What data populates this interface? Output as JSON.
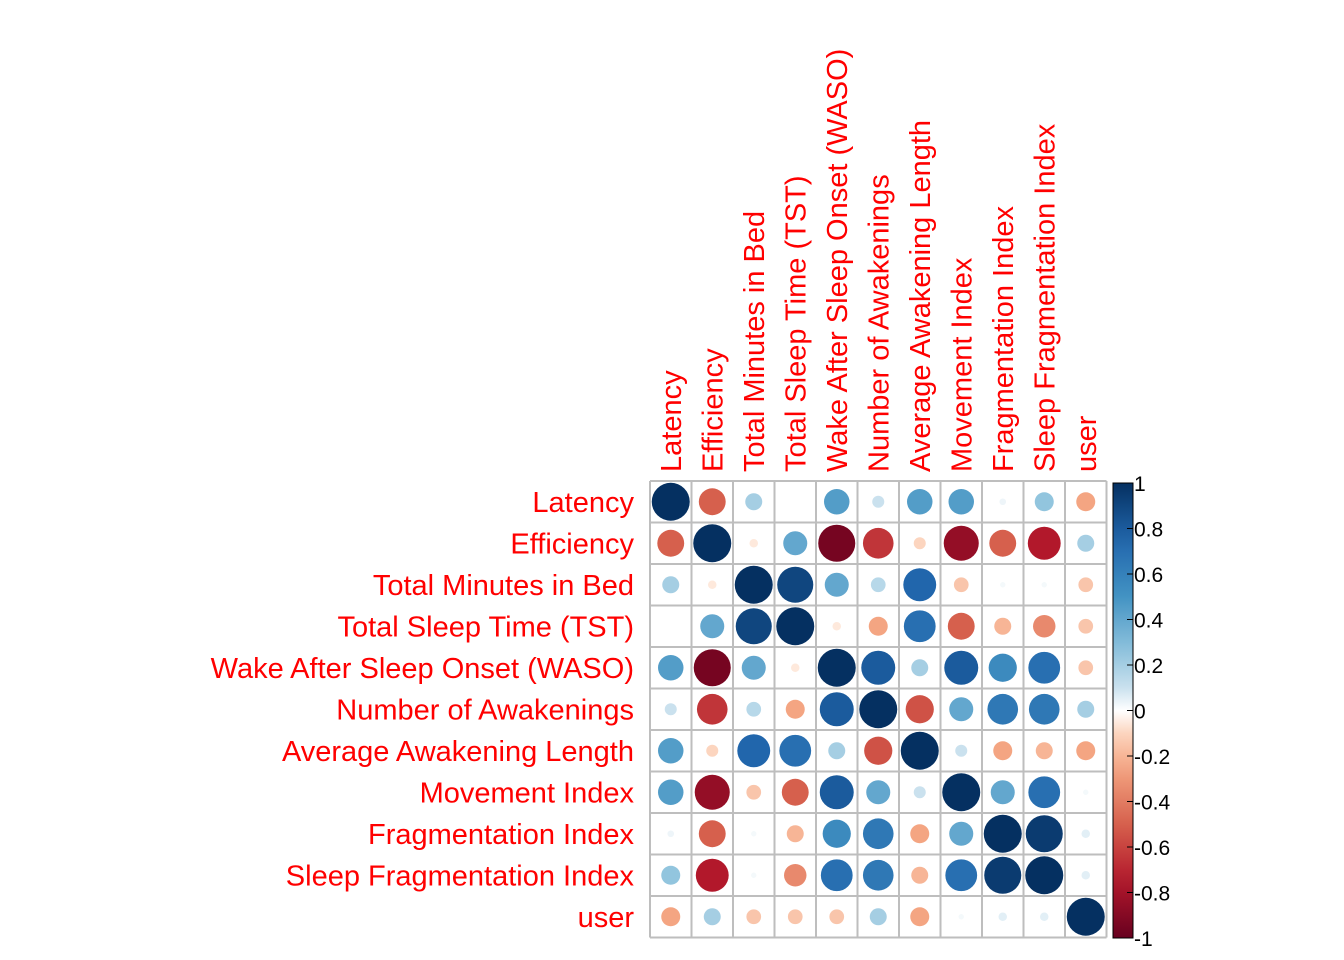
{
  "chart_data": {
    "type": "heatmap",
    "variables": [
      "Latency",
      "Efficiency",
      "Total Minutes in Bed",
      "Total Sleep Time (TST)",
      "Wake After Sleep Onset (WASO)",
      "Number of Awakenings",
      "Average Awakening Length",
      "Movement Index",
      "Fragmentation Index",
      "Sleep Fragmentation Index",
      "user"
    ],
    "matrix": [
      [
        1.0,
        -0.5,
        0.2,
        0.0,
        0.45,
        0.1,
        0.45,
        0.45,
        0.03,
        0.25,
        -0.25
      ],
      [
        -0.5,
        1.0,
        -0.05,
        0.4,
        -0.95,
        -0.65,
        -0.1,
        -0.85,
        -0.5,
        -0.75,
        0.2
      ],
      [
        0.2,
        -0.05,
        1.0,
        0.9,
        0.4,
        0.15,
        0.75,
        -0.15,
        0.02,
        0.02,
        -0.15
      ],
      [
        0.0,
        0.4,
        0.9,
        1.0,
        -0.05,
        -0.25,
        0.7,
        -0.5,
        -0.2,
        -0.35,
        -0.15
      ],
      [
        0.45,
        -0.95,
        0.4,
        -0.05,
        1.0,
        0.8,
        0.2,
        0.8,
        0.55,
        0.7,
        -0.15
      ],
      [
        0.1,
        -0.65,
        0.15,
        -0.25,
        0.8,
        1.0,
        -0.55,
        0.4,
        0.65,
        0.65,
        0.2
      ],
      [
        0.45,
        -0.1,
        0.75,
        0.7,
        0.2,
        -0.55,
        1.0,
        0.1,
        -0.25,
        -0.2,
        -0.25
      ],
      [
        0.45,
        -0.85,
        -0.15,
        -0.5,
        0.8,
        0.4,
        0.1,
        1.0,
        0.4,
        0.7,
        0.02
      ],
      [
        0.03,
        -0.5,
        0.02,
        -0.2,
        0.55,
        0.65,
        -0.25,
        0.4,
        1.0,
        0.95,
        0.05
      ],
      [
        0.25,
        -0.75,
        0.02,
        -0.35,
        0.7,
        0.65,
        -0.2,
        0.7,
        0.95,
        1.0,
        0.05
      ],
      [
        -0.25,
        0.2,
        -0.15,
        -0.15,
        -0.15,
        0.2,
        -0.25,
        0.02,
        0.05,
        0.05,
        1.0
      ]
    ],
    "legend": {
      "ticks": [
        "1",
        "0.8",
        "0.6",
        "0.4",
        "0.2",
        "0",
        "-0.2",
        "-0.4",
        "-0.6",
        "-0.8",
        "-1"
      ],
      "range": [
        -1,
        1
      ],
      "placement": "right"
    },
    "colors": {
      "negative_end": "#67001f",
      "neutral": "#ffffff",
      "positive_end": "#053061",
      "label": "#ff0000",
      "grid": "#bebebe"
    }
  }
}
